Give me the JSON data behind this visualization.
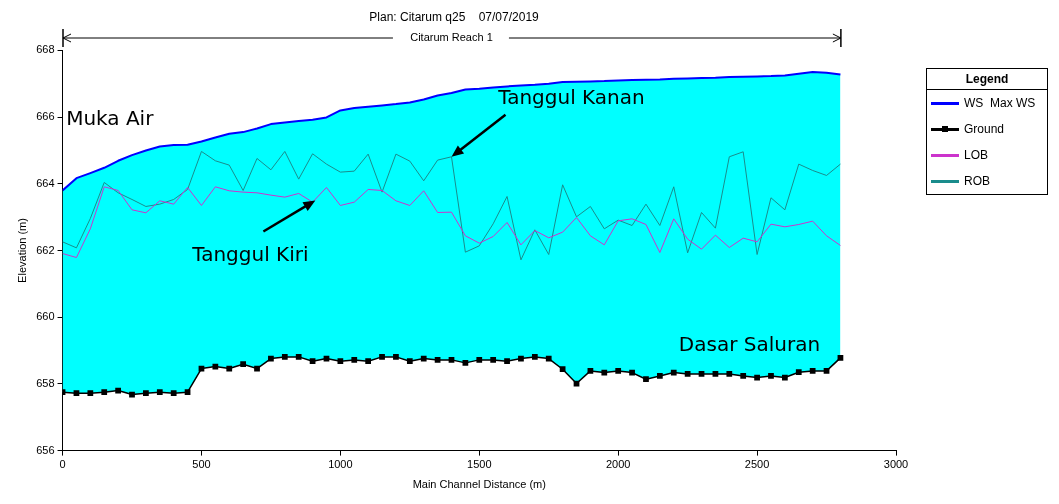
{
  "chart_data": {
    "type": "line",
    "title": "Plan: Citarum q25    07/07/2019",
    "xlabel": "Main Channel Distance (m)",
    "ylabel": "Elevation (m)",
    "legend_title": "Legend",
    "legend": "right",
    "grid": false,
    "xlim": [
      0,
      3000
    ],
    "ylim": [
      656,
      668
    ],
    "xticks": [
      0,
      500,
      1000,
      1500,
      2000,
      2500,
      3000
    ],
    "yticks": [
      656,
      658,
      660,
      662,
      664,
      666,
      668
    ],
    "x": [
      0,
      50,
      100,
      150,
      200,
      250,
      300,
      350,
      400,
      450,
      500,
      550,
      600,
      650,
      700,
      750,
      800,
      850,
      900,
      950,
      1000,
      1050,
      1100,
      1150,
      1200,
      1250,
      1300,
      1350,
      1400,
      1450,
      1500,
      1550,
      1600,
      1650,
      1700,
      1750,
      1800,
      1850,
      1900,
      1950,
      2000,
      2050,
      2100,
      2150,
      2200,
      2250,
      2300,
      2350,
      2400,
      2450,
      2500,
      2550,
      2600,
      2650,
      2700,
      2750,
      2800
    ],
    "series": [
      {
        "name": "WS  Max WS",
        "type": "area",
        "color": "#0000ff",
        "values": [
          663.8,
          664.17,
          664.32,
          664.48,
          664.69,
          664.86,
          665.0,
          665.12,
          665.16,
          665.17,
          665.27,
          665.39,
          665.5,
          665.55,
          665.66,
          665.79,
          665.84,
          665.88,
          665.92,
          665.99,
          666.2,
          666.27,
          666.31,
          666.35,
          666.39,
          666.44,
          666.53,
          666.65,
          666.72,
          666.83,
          666.85,
          666.89,
          666.92,
          666.95,
          666.97,
          667.0,
          667.05,
          667.06,
          667.07,
          667.08,
          667.1,
          667.11,
          667.12,
          667.13,
          667.15,
          667.16,
          667.17,
          667.18,
          667.2,
          667.21,
          667.22,
          667.23,
          667.25,
          667.3,
          667.35,
          667.33,
          667.28
        ]
      },
      {
        "name": "Ground",
        "color": "#000000",
        "marker": "square",
        "values": [
          657.75,
          657.72,
          657.72,
          657.75,
          657.8,
          657.68,
          657.72,
          657.75,
          657.72,
          657.75,
          658.46,
          658.52,
          658.46,
          658.59,
          658.46,
          658.76,
          658.81,
          658.81,
          658.68,
          658.76,
          658.68,
          658.72,
          658.68,
          658.81,
          658.81,
          658.68,
          658.76,
          658.72,
          658.72,
          658.63,
          658.72,
          658.72,
          658.68,
          658.76,
          658.81,
          658.76,
          658.44,
          658.01,
          658.39,
          658.34,
          658.39,
          658.34,
          658.14,
          658.24,
          658.34,
          658.3,
          658.3,
          658.3,
          658.3,
          658.24,
          658.19,
          658.24,
          658.19,
          658.35,
          658.39,
          658.39,
          658.78
        ]
      },
      {
        "name": "LOB",
        "color": "#cc33cc",
        "values": [
          661.91,
          661.79,
          662.65,
          663.91,
          663.8,
          663.22,
          663.13,
          663.49,
          663.39,
          663.89,
          663.35,
          663.91,
          663.79,
          663.75,
          663.73,
          663.66,
          663.6,
          663.71,
          663.45,
          663.89,
          663.35,
          663.45,
          663.83,
          663.8,
          663.49,
          663.35,
          663.79,
          663.14,
          663.15,
          662.44,
          662.22,
          662.42,
          662.84,
          662.17,
          662.6,
          662.38,
          662.55,
          662.99,
          662.44,
          662.17,
          662.89,
          662.95,
          662.78,
          661.94,
          662.95,
          662.34,
          662.04,
          662.46,
          662.09,
          662.37,
          662.26,
          662.79,
          662.71,
          662.78,
          662.88,
          662.44,
          662.15
        ]
      },
      {
        "name": "ROB",
        "color": "#1a8c8c",
        "values": [
          662.26,
          662.08,
          662.96,
          664.04,
          663.73,
          663.53,
          663.32,
          663.39,
          663.53,
          663.83,
          664.97,
          664.69,
          664.56,
          663.8,
          664.76,
          664.42,
          664.97,
          664.14,
          664.9,
          664.59,
          664.35,
          664.38,
          664.89,
          663.75,
          664.89,
          664.68,
          664.09,
          664.71,
          664.81,
          661.95,
          662.14,
          662.8,
          663.62,
          661.72,
          662.62,
          661.88,
          663.97,
          663.01,
          663.32,
          662.65,
          662.91,
          662.75,
          663.39,
          662.75,
          663.91,
          661.93,
          663.14,
          662.67,
          664.81,
          664.96,
          661.88,
          663.58,
          663.22,
          664.59,
          664.4,
          664.25,
          664.59
        ]
      }
    ],
    "annotations": [
      "Citarum Reach 1",
      {
        "text": "Muka Air",
        "x": 350,
        "y": 665.16
      },
      {
        "text": "Tanggul Kanan",
        "x": 1400,
        "y": 664.81
      },
      {
        "text": "Tanggul Kiri",
        "x": 910,
        "y": 663.5
      },
      {
        "text": "Dasar Saluran",
        "x": 2800,
        "y": 658.78
      }
    ]
  }
}
